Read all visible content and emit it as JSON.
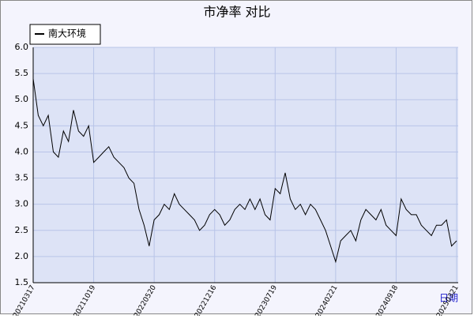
{
  "chart_data": {
    "type": "line",
    "title": "市净率  对比",
    "x_label": "日期",
    "categories": [
      "20210317",
      null,
      null,
      null,
      null,
      null,
      null,
      null,
      null,
      null,
      null,
      null,
      "20211019",
      null,
      null,
      null,
      null,
      null,
      null,
      null,
      null,
      null,
      null,
      null,
      "20220520",
      null,
      null,
      null,
      null,
      null,
      null,
      null,
      null,
      null,
      null,
      null,
      "20221216",
      null,
      null,
      null,
      null,
      null,
      null,
      null,
      null,
      null,
      null,
      null,
      "20230719",
      null,
      null,
      null,
      null,
      null,
      null,
      null,
      null,
      null,
      null,
      null,
      "20240221",
      null,
      null,
      null,
      null,
      null,
      null,
      null,
      null,
      null,
      null,
      null,
      "20240918",
      null,
      null,
      null,
      null,
      null,
      null,
      null,
      null,
      null,
      null,
      null,
      "20250321"
    ],
    "series": [
      {
        "name": "南大环境",
        "color": "#000000",
        "values": [
          5.4,
          4.7,
          4.5,
          4.7,
          4.0,
          3.9,
          4.4,
          4.2,
          4.8,
          4.4,
          4.3,
          4.5,
          3.8,
          3.9,
          4.0,
          4.1,
          3.9,
          3.8,
          3.7,
          3.5,
          3.4,
          2.9,
          2.6,
          2.2,
          2.7,
          2.8,
          3.0,
          2.9,
          3.2,
          3.0,
          2.9,
          2.8,
          2.7,
          2.5,
          2.6,
          2.8,
          2.9,
          2.8,
          2.6,
          2.7,
          2.9,
          3.0,
          2.9,
          3.1,
          2.9,
          3.1,
          2.8,
          2.7,
          3.3,
          3.2,
          3.6,
          3.1,
          2.9,
          3.0,
          2.8,
          3.0,
          2.9,
          2.7,
          2.5,
          2.2,
          1.9,
          2.3,
          2.4,
          2.5,
          2.3,
          2.7,
          2.9,
          2.8,
          2.7,
          2.9,
          2.6,
          2.5,
          2.4,
          3.1,
          2.9,
          2.8,
          2.8,
          2.6,
          2.5,
          2.4,
          2.6,
          2.6,
          2.7,
          2.2,
          2.3
        ]
      }
    ],
    "ylim": [
      1.5,
      6.0
    ],
    "yticks": [
      {
        "value": 1.5,
        "label": "1.5"
      },
      {
        "value": 2,
        "label": "2.0"
      },
      {
        "value": 2.5,
        "label": "2.5"
      },
      {
        "value": 3,
        "label": "3.0"
      },
      {
        "value": 3.5,
        "label": "3.5"
      },
      {
        "value": 4,
        "label": "4.0"
      },
      {
        "value": 4.5,
        "label": "4.5"
      },
      {
        "value": 5,
        "label": "5.0"
      },
      {
        "value": 5.5,
        "label": "5.5"
      },
      {
        "value": 6,
        "label": "6.0"
      }
    ],
    "grid": true,
    "legend": "top-left"
  }
}
